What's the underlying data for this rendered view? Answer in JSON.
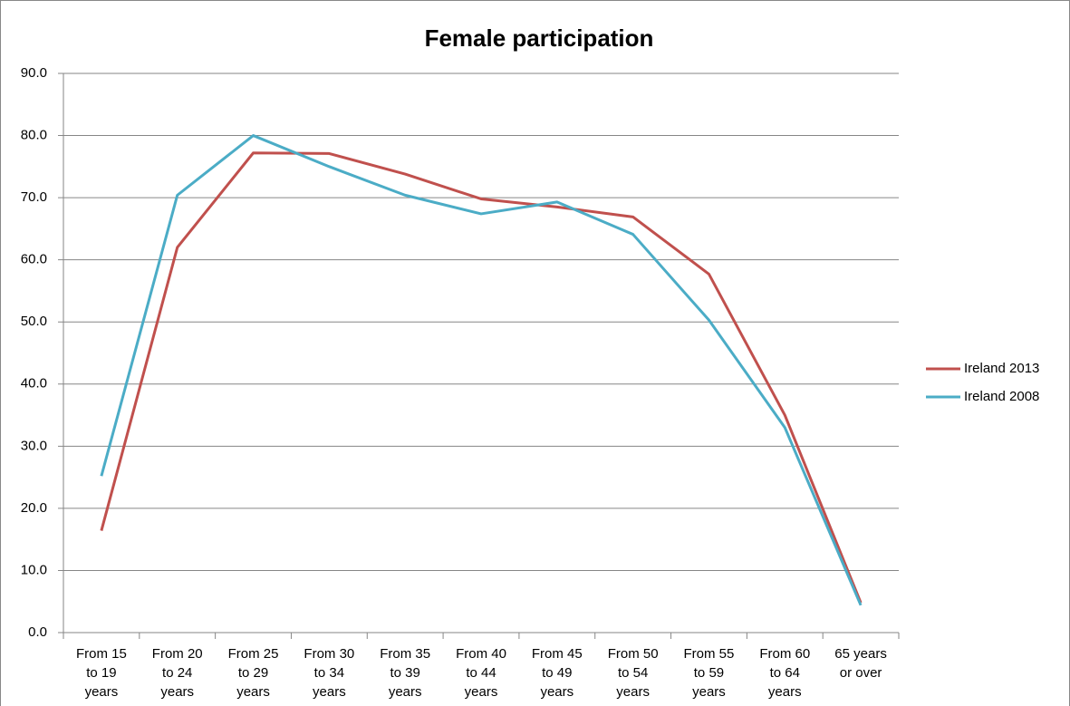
{
  "chart_data": {
    "type": "line",
    "title": "Female participation",
    "categories": [
      "From 15 to 19 years",
      "From 20 to 24 years",
      "From 25 to 29 years",
      "From 30 to 34 years",
      "From 35 to 39 years",
      "From 40 to 44 years",
      "From 45 to 49 years",
      "From 50 to 54 years",
      "From 55 to 59 years",
      "From 60 to 64 years",
      "65 years or over"
    ],
    "series": [
      {
        "name": "Ireland 2013",
        "color": "#c0504d",
        "values": [
          16.4,
          62.0,
          77.2,
          77.1,
          73.8,
          69.8,
          68.5,
          66.9,
          57.7,
          35.0,
          4.8
        ]
      },
      {
        "name": "Ireland 2008",
        "color": "#4bacc6",
        "values": [
          25.2,
          70.4,
          80.0,
          75.0,
          70.4,
          67.4,
          69.3,
          64.1,
          50.3,
          33.0,
          4.4
        ]
      }
    ],
    "ylim": [
      0,
      90
    ],
    "yticks": [
      {
        "value": 0,
        "label": "0.0"
      },
      {
        "value": 10,
        "label": "10.0"
      },
      {
        "value": 20,
        "label": "20.0"
      },
      {
        "value": 30,
        "label": "30.0"
      },
      {
        "value": 40,
        "label": "40.0"
      },
      {
        "value": 50,
        "label": "50.0"
      },
      {
        "value": 60,
        "label": "60.0"
      },
      {
        "value": 70,
        "label": "70.0"
      },
      {
        "value": 80,
        "label": "80.0"
      },
      {
        "value": 90,
        "label": "90.0"
      }
    ],
    "grid": true,
    "legend": "right"
  }
}
